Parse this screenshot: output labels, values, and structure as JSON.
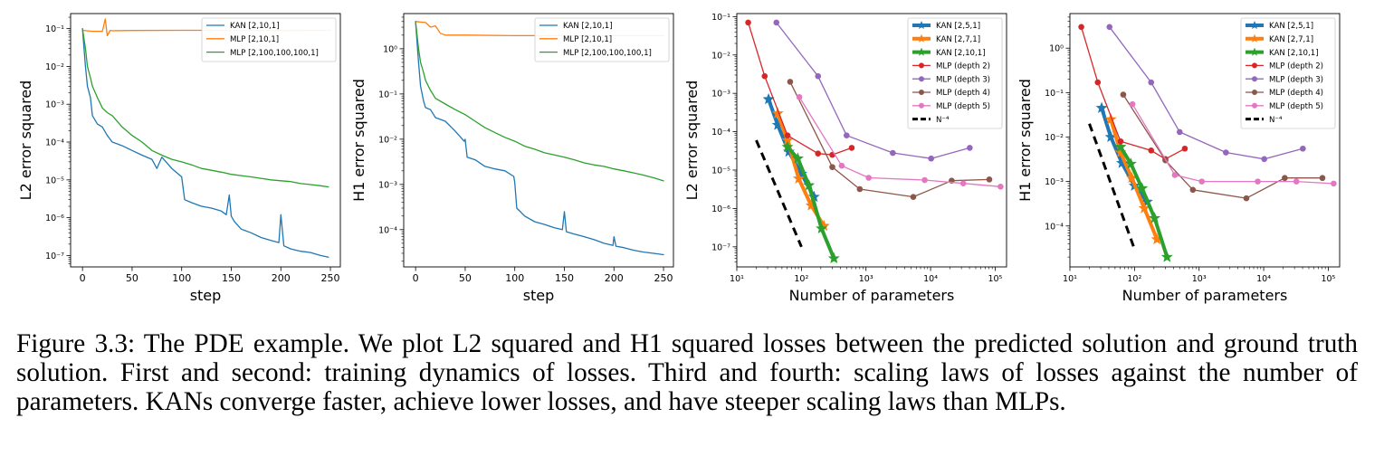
{
  "caption": "Figure 3.3: The PDE example. We plot L2 squared and H1 squared losses between the predicted solution and ground truth solution. First and second: training dynamics of losses. Third and fourth: scaling laws of losses against the number of parameters. KANs converge faster, achieve lower losses, and have steeper scaling laws than MLPs.",
  "colors": {
    "blue": "#1f77b4",
    "orange": "#ff7f0e",
    "green": "#2ca02c",
    "red": "#d62728",
    "purple": "#9467bd",
    "brown": "#8c564b",
    "pink": "#e377c2"
  },
  "chart_data": [
    {
      "type": "line",
      "xlabel": "step",
      "ylabel": "L2 error squared",
      "xscale": "linear",
      "yscale": "log",
      "xlim": [
        -12,
        260
      ],
      "ylim": [
        5e-08,
        0.25
      ],
      "xticks": [
        0,
        50,
        100,
        150,
        200,
        250
      ],
      "xtick_labels": [
        "0",
        "50",
        "100",
        "150",
        "200",
        "250"
      ],
      "yticks": [
        1e-07,
        1e-06,
        1e-05,
        0.0001,
        0.001,
        0.01,
        0.1
      ],
      "ytick_labels": [
        "10⁻⁷",
        "10⁻⁶",
        "10⁻⁵",
        "10⁻⁴",
        "10⁻³",
        "10⁻²",
        "10⁻¹"
      ],
      "legend_loc": "top-right",
      "series": [
        {
          "name": "KAN [2,10,1]",
          "color": "blue",
          "lw": 1.3,
          "x": [
            0,
            3,
            5,
            8,
            10,
            15,
            20,
            25,
            30,
            40,
            50,
            60,
            70,
            75,
            80,
            90,
            100,
            103,
            110,
            120,
            130,
            140,
            145,
            148,
            150,
            153,
            160,
            170,
            180,
            190,
            198,
            200,
            203,
            210,
            220,
            230,
            240,
            248
          ],
          "y": [
            0.1,
            0.01,
            0.003,
            0.0015,
            0.0005,
            0.0003,
            0.00025,
            0.00015,
            0.0001,
            8e-05,
            6e-05,
            4.5e-05,
            3.5e-05,
            2e-05,
            4e-05,
            2e-05,
            1.2e-05,
            3e-06,
            2.5e-06,
            2e-06,
            1.8e-06,
            1.5e-06,
            1.2e-06,
            4e-06,
            1.1e-06,
            8e-07,
            5e-07,
            4e-07,
            3e-07,
            2.5e-07,
            2.2e-07,
            1.2e-06,
            1.8e-07,
            1.5e-07,
            1.3e-07,
            1.2e-07,
            1e-07,
            9e-08
          ]
        },
        {
          "name": "MLP [2,10,1]",
          "color": "orange",
          "lw": 1.3,
          "x": [
            0,
            10,
            20,
            23,
            25,
            28,
            30,
            50,
            100,
            150,
            200,
            250
          ],
          "y": [
            0.09,
            0.085,
            0.085,
            0.18,
            0.065,
            0.09,
            0.088,
            0.089,
            0.09,
            0.09,
            0.089,
            0.09
          ]
        },
        {
          "name": "MLP [2,100,100,100,1]",
          "color": "green",
          "lw": 1.3,
          "x": [
            0,
            3,
            5,
            8,
            10,
            15,
            20,
            25,
            30,
            40,
            50,
            60,
            70,
            80,
            90,
            100,
            110,
            120,
            130,
            140,
            150,
            160,
            170,
            180,
            190,
            200,
            210,
            220,
            230,
            240,
            248
          ],
          "y": [
            0.1,
            0.03,
            0.01,
            0.005,
            0.003,
            0.0015,
            0.0008,
            0.0006,
            0.0005,
            0.00025,
            0.00015,
            0.0001,
            6e-05,
            4.5e-05,
            3.5e-05,
            3e-05,
            2.5e-05,
            2e-05,
            1.8e-05,
            1.6e-05,
            1.4e-05,
            1.3e-05,
            1.2e-05,
            1.1e-05,
            1e-05,
            9.5e-06,
            9e-06,
            8e-06,
            7.5e-06,
            7e-06,
            6.5e-06
          ]
        }
      ]
    },
    {
      "type": "line",
      "xlabel": "step",
      "ylabel": "H1 error squared",
      "xscale": "linear",
      "yscale": "log",
      "xlim": [
        -12,
        260
      ],
      "ylim": [
        1.5e-05,
        6
      ],
      "xticks": [
        0,
        50,
        100,
        150,
        200,
        250
      ],
      "xtick_labels": [
        "0",
        "50",
        "100",
        "150",
        "200",
        "250"
      ],
      "yticks": [
        0.0001,
        0.001,
        0.01,
        0.1,
        1
      ],
      "ytick_labels": [
        "10⁻⁴",
        "10⁻³",
        "10⁻²",
        "10⁻¹",
        "10⁰"
      ],
      "legend_loc": "top-right",
      "series": [
        {
          "name": "KAN [2,10,1]",
          "color": "blue",
          "lw": 1.3,
          "x": [
            0,
            3,
            5,
            8,
            10,
            15,
            20,
            30,
            40,
            49,
            50,
            52,
            60,
            70,
            80,
            90,
            99,
            100,
            102,
            110,
            120,
            130,
            140,
            148,
            150,
            152,
            160,
            170,
            180,
            190,
            199,
            200,
            202,
            210,
            220,
            230,
            240,
            250
          ],
          "y": [
            4,
            0.5,
            0.15,
            0.07,
            0.05,
            0.045,
            0.03,
            0.025,
            0.015,
            0.009,
            0.01,
            0.004,
            0.0035,
            0.0025,
            0.0022,
            0.002,
            0.0015,
            0.0011,
            0.0003,
            0.0002,
            0.00015,
            0.00013,
            0.00011,
            0.0001,
            0.00025,
            9e-05,
            8e-05,
            7e-05,
            6e-05,
            5e-05,
            4.5e-05,
            7e-05,
            4.3e-05,
            4e-05,
            3.5e-05,
            3.2e-05,
            3e-05,
            2.8e-05
          ]
        },
        {
          "name": "MLP [2,10,1]",
          "color": "orange",
          "lw": 1.3,
          "x": [
            0,
            10,
            15,
            20,
            25,
            30,
            50,
            100,
            150,
            200,
            250
          ],
          "y": [
            4,
            3.8,
            3.0,
            3.2,
            2.2,
            2.0,
            2.0,
            1.95,
            1.95,
            1.95,
            1.95
          ]
        },
        {
          "name": "MLP [2,100,100,100,1]",
          "color": "green",
          "lw": 1.3,
          "x": [
            0,
            3,
            5,
            8,
            10,
            15,
            20,
            30,
            40,
            50,
            60,
            70,
            80,
            90,
            100,
            110,
            120,
            130,
            140,
            150,
            160,
            170,
            180,
            190,
            200,
            210,
            220,
            230,
            240,
            250
          ],
          "y": [
            4,
            1.0,
            0.5,
            0.3,
            0.2,
            0.12,
            0.08,
            0.06,
            0.045,
            0.035,
            0.025,
            0.018,
            0.014,
            0.011,
            0.009,
            0.007,
            0.006,
            0.005,
            0.0045,
            0.004,
            0.0035,
            0.003,
            0.0027,
            0.0025,
            0.0022,
            0.002,
            0.0018,
            0.0016,
            0.0014,
            0.0012
          ]
        }
      ]
    },
    {
      "type": "line",
      "xlabel": "Number of parameters",
      "ylabel": "L2 error squared",
      "xscale": "log",
      "yscale": "log",
      "xlim": [
        10,
        150000
      ],
      "ylim": [
        3e-08,
        0.12
      ],
      "xticks": [
        10,
        100,
        1000,
        10000,
        100000
      ],
      "xtick_labels": [
        "10¹",
        "10²",
        "10³",
        "10⁴",
        "10⁵"
      ],
      "yticks": [
        1e-07,
        1e-06,
        1e-05,
        0.0001,
        0.001,
        0.01,
        0.1
      ],
      "ytick_labels": [
        "10⁻⁷",
        "10⁻⁶",
        "10⁻⁵",
        "10⁻⁴",
        "10⁻³",
        "10⁻²",
        "10⁻¹"
      ],
      "legend_loc": "top-right",
      "series": [
        {
          "name": "KAN [2,5,1]",
          "color": "blue",
          "lw": 4,
          "marker": "star",
          "x": [
            31,
            43,
            64,
            100,
            157
          ],
          "y": [
            0.0007,
            0.00015,
            3e-05,
            8e-06,
            2e-06
          ]
        },
        {
          "name": "KAN [2,7,1]",
          "color": "orange",
          "lw": 4,
          "marker": "star",
          "x": [
            43,
            61,
            91,
            142,
            223
          ],
          "y": [
            0.0003,
            6e-05,
            6e-06,
            1.2e-06,
            3.5e-07
          ]
        },
        {
          "name": "KAN [2,10,1]",
          "color": "green",
          "lw": 4,
          "marker": "star",
          "x": [
            61,
            88,
            131,
            205,
            319
          ],
          "y": [
            4e-05,
            2e-05,
            4e-06,
            3e-07,
            5e-08
          ]
        },
        {
          "name": "MLP (depth 2)",
          "color": "red",
          "lw": 1.3,
          "marker": "circle",
          "x": [
            15,
            27,
            61,
            181,
            301,
            601
          ],
          "y": [
            0.07,
            0.0028,
            8e-05,
            2.7e-05,
            2.5e-05,
            3.8e-05
          ]
        },
        {
          "name": "MLP (depth 3)",
          "color": "purple",
          "lw": 1.3,
          "marker": "circle",
          "x": [
            41,
            181,
            501,
            2601,
            10201,
            40401
          ],
          "y": [
            0.07,
            0.0028,
            8e-05,
            2.8e-05,
            2e-05,
            3.8e-05
          ]
        },
        {
          "name": "MLP (depth 4)",
          "color": "brown",
          "lw": 1.3,
          "marker": "circle",
          "x": [
            67,
            301,
            801,
            5401,
            21201,
            81201
          ],
          "y": [
            0.002,
            1.2e-05,
            3.2e-06,
            2e-06,
            5.3e-06,
            5.7e-06
          ]
        },
        {
          "name": "MLP (depth 5)",
          "color": "pink",
          "lw": 1.3,
          "marker": "circle",
          "x": [
            93,
            421,
            1101,
            8101,
            32101,
            121201
          ],
          "y": [
            0.0008,
            1.3e-05,
            6.3e-06,
            5.5e-06,
            4.5e-06,
            3.7e-06
          ]
        },
        {
          "name": "N⁻⁴",
          "color": "#000000",
          "lw": 3,
          "dash": "9,6",
          "x": [
            20,
            100
          ],
          "y": [
            6e-05,
            1e-07
          ]
        }
      ]
    },
    {
      "type": "line",
      "xlabel": "Number of parameters",
      "ylabel": "H1 error squared",
      "xscale": "log",
      "yscale": "log",
      "xlim": [
        10,
        150000
      ],
      "ylim": [
        1.2e-05,
        6
      ],
      "xticks": [
        10,
        100,
        1000,
        10000,
        100000
      ],
      "xtick_labels": [
        "10¹",
        "10²",
        "10³",
        "10⁴",
        "10⁵"
      ],
      "yticks": [
        0.0001,
        0.001,
        0.01,
        0.1,
        1
      ],
      "ytick_labels": [
        "10⁻⁴",
        "10⁻³",
        "10⁻²",
        "10⁻¹",
        "10⁰"
      ],
      "legend_loc": "top-right",
      "series": [
        {
          "name": "KAN [2,5,1]",
          "color": "blue",
          "lw": 4,
          "marker": "star",
          "x": [
            31,
            43,
            64,
            100,
            157
          ],
          "y": [
            0.045,
            0.01,
            0.0026,
            0.0008,
            0.00035
          ]
        },
        {
          "name": "KAN [2,7,1]",
          "color": "orange",
          "lw": 4,
          "marker": "star",
          "x": [
            43,
            61,
            91,
            142,
            223
          ],
          "y": [
            0.025,
            0.0045,
            0.0012,
            0.00025,
            5e-05
          ]
        },
        {
          "name": "KAN [2,10,1]",
          "color": "green",
          "lw": 4,
          "marker": "star",
          "x": [
            61,
            88,
            131,
            205,
            319
          ],
          "y": [
            0.006,
            0.0025,
            0.0007,
            0.00015,
            2e-05
          ]
        },
        {
          "name": "MLP (depth 2)",
          "color": "red",
          "lw": 1.3,
          "marker": "circle",
          "x": [
            15,
            27,
            61,
            181,
            301,
            601
          ],
          "y": [
            3.0,
            0.17,
            0.008,
            0.005,
            0.0032,
            0.0055
          ]
        },
        {
          "name": "MLP (depth 3)",
          "color": "purple",
          "lw": 1.3,
          "marker": "circle",
          "x": [
            41,
            181,
            501,
            2601,
            10201,
            40401
          ],
          "y": [
            3.0,
            0.17,
            0.013,
            0.0045,
            0.0032,
            0.0055
          ]
        },
        {
          "name": "MLP (depth 4)",
          "color": "brown",
          "lw": 1.3,
          "marker": "circle",
          "x": [
            67,
            301,
            801,
            5401,
            21201,
            81201
          ],
          "y": [
            0.09,
            0.003,
            0.00065,
            0.00042,
            0.0012,
            0.0012
          ]
        },
        {
          "name": "MLP (depth 5)",
          "color": "pink",
          "lw": 1.3,
          "marker": "circle",
          "x": [
            93,
            421,
            1101,
            8101,
            32101,
            121201
          ],
          "y": [
            0.055,
            0.0014,
            0.001,
            0.001,
            0.001,
            0.0009
          ]
        },
        {
          "name": "N⁻⁴",
          "color": "#000000",
          "lw": 3,
          "dash": "9,6",
          "x": [
            20,
            100
          ],
          "y": [
            0.02,
            3e-05
          ]
        }
      ]
    }
  ]
}
